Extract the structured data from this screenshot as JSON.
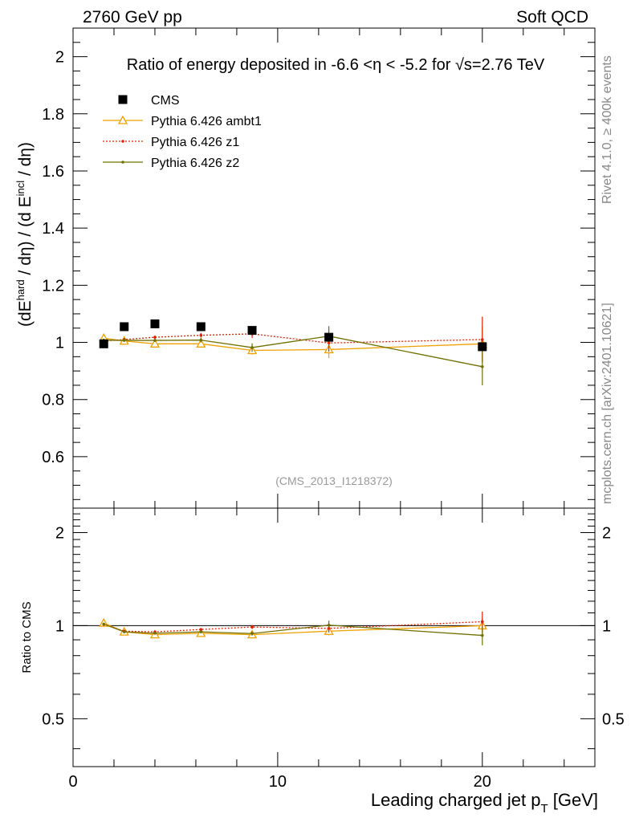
{
  "header": {
    "left": "2760 GeV pp",
    "right": "Soft QCD",
    "side_top": "Rivet 4.1.0, ≥ 400k events",
    "side_bottom": "mcplots.cern.ch [arXiv:2401.10621]"
  },
  "chart_data": {
    "type": "line",
    "title": "Ratio of energy deposited in -6.6 <η < -5.2 for √s=2.76 TeV",
    "watermark": "(CMS_2013_I1218372)",
    "xlabel": "Leading charged jet p_T [GeV]",
    "ylabel": "(dE^hard / dη) / (d E^incl / dη)",
    "ratio_ylabel": "Ratio to CMS",
    "xlim": [
      0,
      25.5
    ],
    "ylim": [
      0.42,
      2.1
    ],
    "ratio_ylim": [
      0.35,
      2.4
    ],
    "x_ticks": [
      0,
      10,
      20
    ],
    "y_ticks": [
      0.6,
      0.8,
      1,
      1.2,
      1.4,
      1.6,
      1.8,
      2
    ],
    "y_tick_labels": [
      "0.6",
      "0.8",
      "1",
      "1.2",
      "1.4",
      "1.6",
      "1.8",
      "2"
    ],
    "ratio_ticks": [
      0.5,
      1,
      2
    ],
    "ratio_tick_labels": [
      "0.5",
      "1",
      "2"
    ],
    "legend_position": "top-left",
    "x": [
      1.5,
      2.5,
      4.0,
      6.25,
      8.75,
      12.5,
      20.0
    ],
    "data": {
      "name": "CMS",
      "color": "#000000",
      "values": [
        0.995,
        1.055,
        1.065,
        1.055,
        1.042,
        1.018,
        0.985
      ]
    },
    "series": [
      {
        "name": "Pythia 6.426 ambt1",
        "color": "#f0a000",
        "marker": "triangle",
        "values": [
          1.015,
          1.005,
          0.995,
          0.995,
          0.972,
          0.975,
          0.995
        ],
        "errors": [
          0.005,
          0.005,
          0.005,
          0.008,
          0.015,
          0.03,
          0.06
        ],
        "ratio": [
          1.02,
          0.955,
          0.935,
          0.945,
          0.935,
          0.96,
          1.0
        ]
      },
      {
        "name": "Pythia 6.426 z1",
        "color": "#e02000",
        "marker": "dot",
        "values": [
          1.005,
          1.01,
          1.018,
          1.025,
          1.03,
          0.998,
          1.01
        ],
        "errors": [
          0.005,
          0.005,
          0.006,
          0.008,
          0.015,
          0.03,
          0.08
        ],
        "ratio": [
          1.01,
          0.96,
          0.955,
          0.972,
          0.99,
          0.98,
          1.03
        ]
      },
      {
        "name": "Pythia 6.426 z2",
        "color": "#707000",
        "marker": "dot",
        "values": [
          1.008,
          1.007,
          1.007,
          1.008,
          0.982,
          1.022,
          0.915
        ],
        "errors": [
          0.005,
          0.005,
          0.005,
          0.008,
          0.015,
          0.035,
          0.065
        ],
        "ratio": [
          1.012,
          0.955,
          0.945,
          0.955,
          0.943,
          1.004,
          0.93
        ]
      }
    ]
  }
}
